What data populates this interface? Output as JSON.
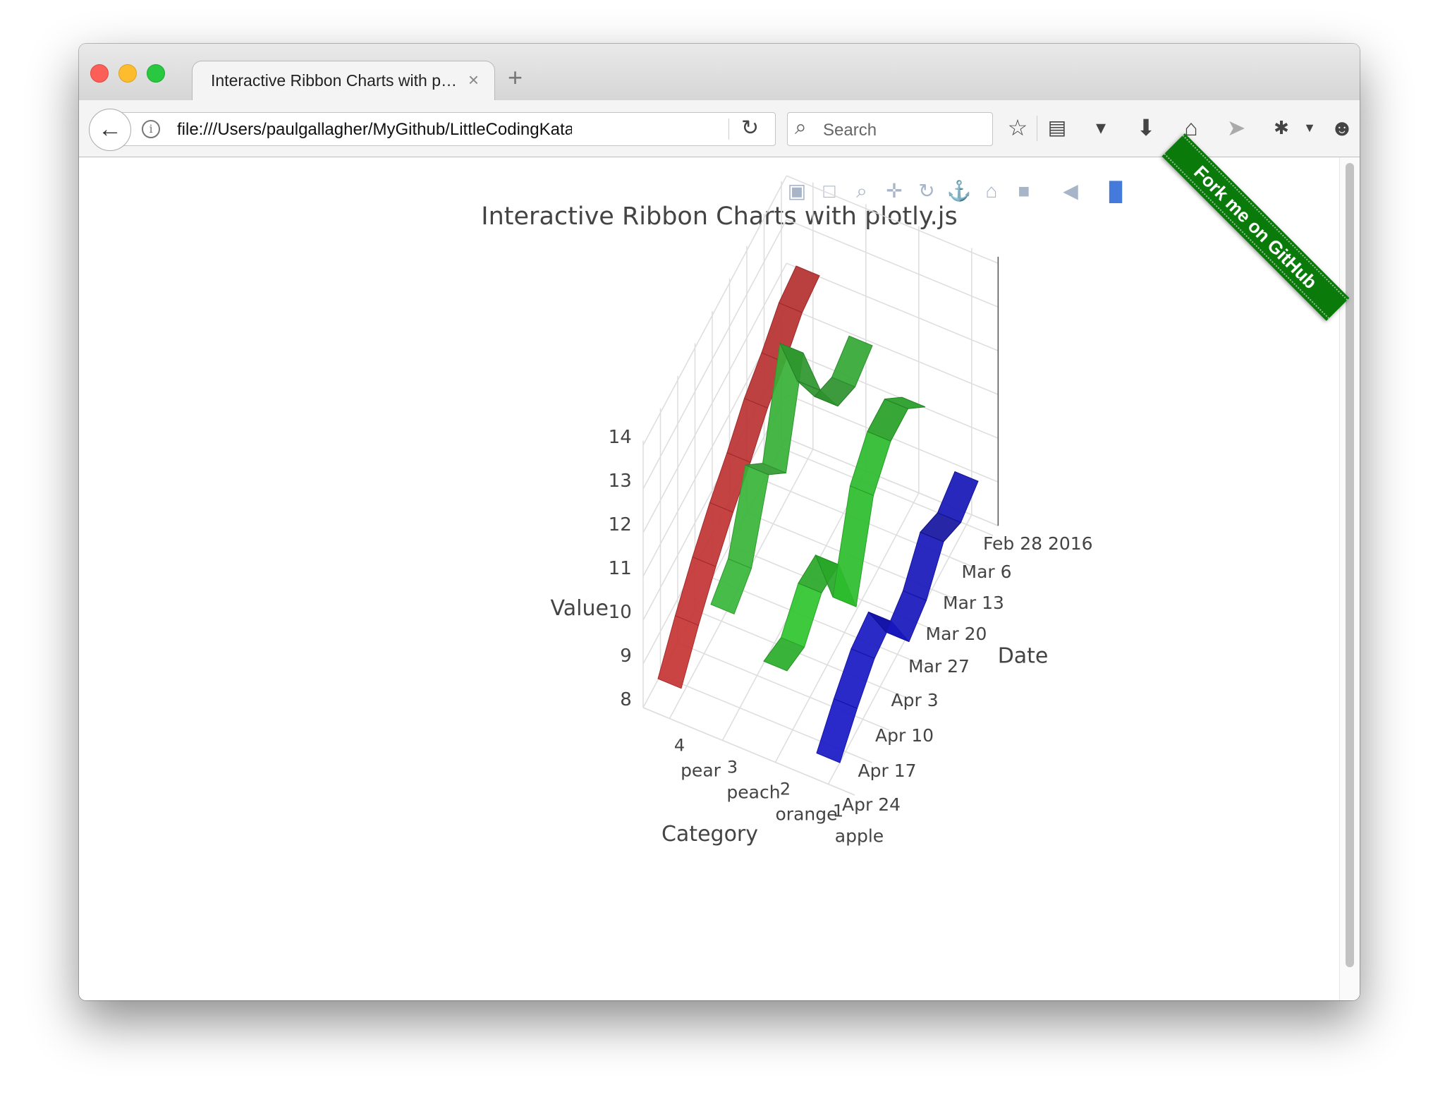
{
  "browser": {
    "tab_title": "Interactive Ribbon Charts with p…",
    "tab_close": "×",
    "new_tab": "+",
    "url": "file:///Users/paulgallagher/MyGithub/LittleCodingKata/ja",
    "search_placeholder": "Search"
  },
  "ribbon": {
    "label": "Fork me on GitHub",
    "color": "#0a7a0a"
  },
  "modebar": {
    "icons": [
      "camera-icon",
      "save-icon",
      "zoom-icon",
      "pan-icon",
      "orbit-icon",
      "turntable-icon",
      "home-icon",
      "camera-view-icon",
      "hover-tag-icon",
      "plotly-logo-icon"
    ]
  },
  "chart_data": {
    "type": "ribbon-3d",
    "title": "Interactive Ribbon Charts with plotly.js",
    "axes": {
      "x": {
        "label": "Date",
        "ticks": [
          "Feb 28 2016",
          "Mar 6",
          "Mar 13",
          "Mar 20",
          "Mar 27",
          "Apr 3",
          "Apr 10",
          "Apr 17",
          "Apr 24"
        ]
      },
      "y": {
        "label": "Category",
        "ticks": [
          "1",
          "2",
          "3",
          "4"
        ],
        "categories": [
          "apple",
          "orange",
          "peach",
          "pear"
        ]
      },
      "z": {
        "label": "Value",
        "range": [
          8,
          14
        ],
        "ticks": [
          "8",
          "9",
          "10",
          "11",
          "12",
          "13",
          "14"
        ]
      }
    },
    "series": [
      {
        "name": "pear",
        "color": "#d43838",
        "dates": [
          "Feb 28 2016",
          "Mar 6",
          "Mar 13",
          "Mar 20",
          "Mar 27",
          "Apr 3",
          "Apr 10",
          "Apr 17",
          "Apr 24"
        ],
        "values": [
          12.3,
          12.2,
          11.8,
          11.5,
          11.0,
          10.6,
          10.1,
          9.5,
          8.8
        ]
      },
      {
        "name": "peach",
        "color": "#3cc43c",
        "dates": [
          "Feb 28 2016",
          "Mar 6",
          "Mar 13",
          "Mar 20",
          "Mar 27",
          "Apr 3",
          "Apr 10",
          "Apr 17",
          "Apr 24"
        ],
        "values": [
          11.2,
          11.0,
          11.3,
          12.4,
          14.0,
          12.0,
          12.7,
          11.3,
          11.0
        ]
      },
      {
        "name": "orange",
        "color": "#33d633",
        "dates": [
          "Feb 28 2016",
          "Mar 6",
          "Mar 13",
          "Mar 20",
          "Mar 27",
          "Apr 3",
          "Apr 10",
          "Apr 17",
          "Apr 24"
        ],
        "values": [
          10.3,
          11.0,
          11.0,
          10.5,
          8.7,
          10.4,
          10.5,
          10.0,
          10.2
        ]
      },
      {
        "name": "apple",
        "color": "#1a1ad6",
        "dates": [
          "Feb 28 2016",
          "Mar 6",
          "Mar 13",
          "Mar 20",
          "Mar 27",
          "Apr 3",
          "Apr 10",
          "Apr 17",
          "Apr 24"
        ],
        "values": [
          9.1,
          8.9,
          9.2,
          8.6,
          8.4,
          9.6,
          9.5,
          9.1,
          8.6
        ]
      }
    ]
  }
}
